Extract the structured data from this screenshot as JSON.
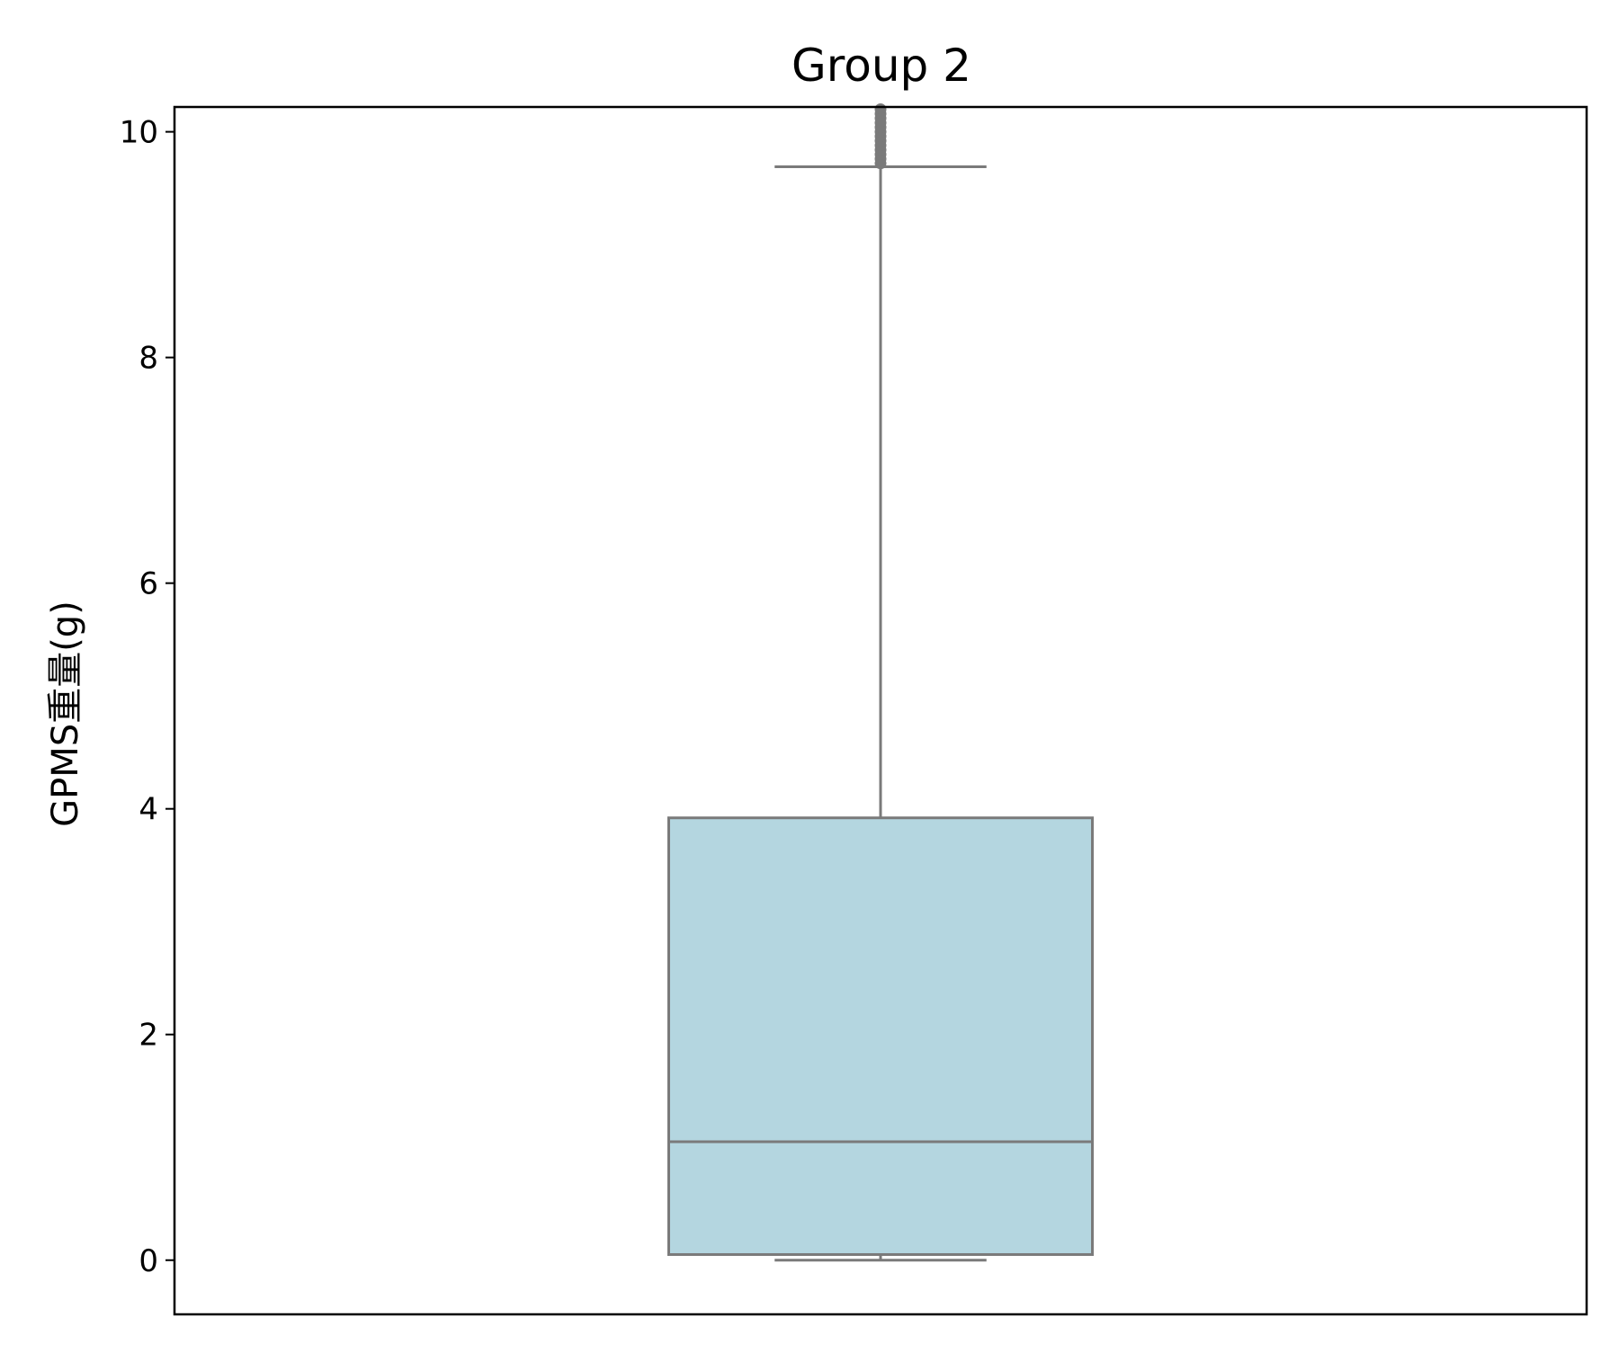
{
  "chart_data": {
    "type": "box",
    "title": "Group 2",
    "xlabel": "",
    "ylabel": "GPMS重量(g)",
    "ylim": [
      -0.48,
      10.22
    ],
    "yticks": [
      0,
      2,
      4,
      6,
      8,
      10
    ],
    "ytick_labels": [
      "0",
      "2",
      "4",
      "6",
      "8",
      "10"
    ],
    "grid": false,
    "boxes": [
      {
        "whisker_low": 0.0,
        "q1": 0.05,
        "median": 1.05,
        "q3": 3.92,
        "whisker_high": 9.69,
        "outliers": [
          9.72,
          9.76,
          9.8,
          9.84,
          9.88,
          9.92,
          9.96,
          10.0,
          10.04,
          10.08,
          10.12,
          10.16,
          10.2
        ]
      }
    ],
    "colors": {
      "box_fill": "#b4d6e0",
      "box_edge": "#7a7a7a",
      "frame": "#000000"
    }
  }
}
